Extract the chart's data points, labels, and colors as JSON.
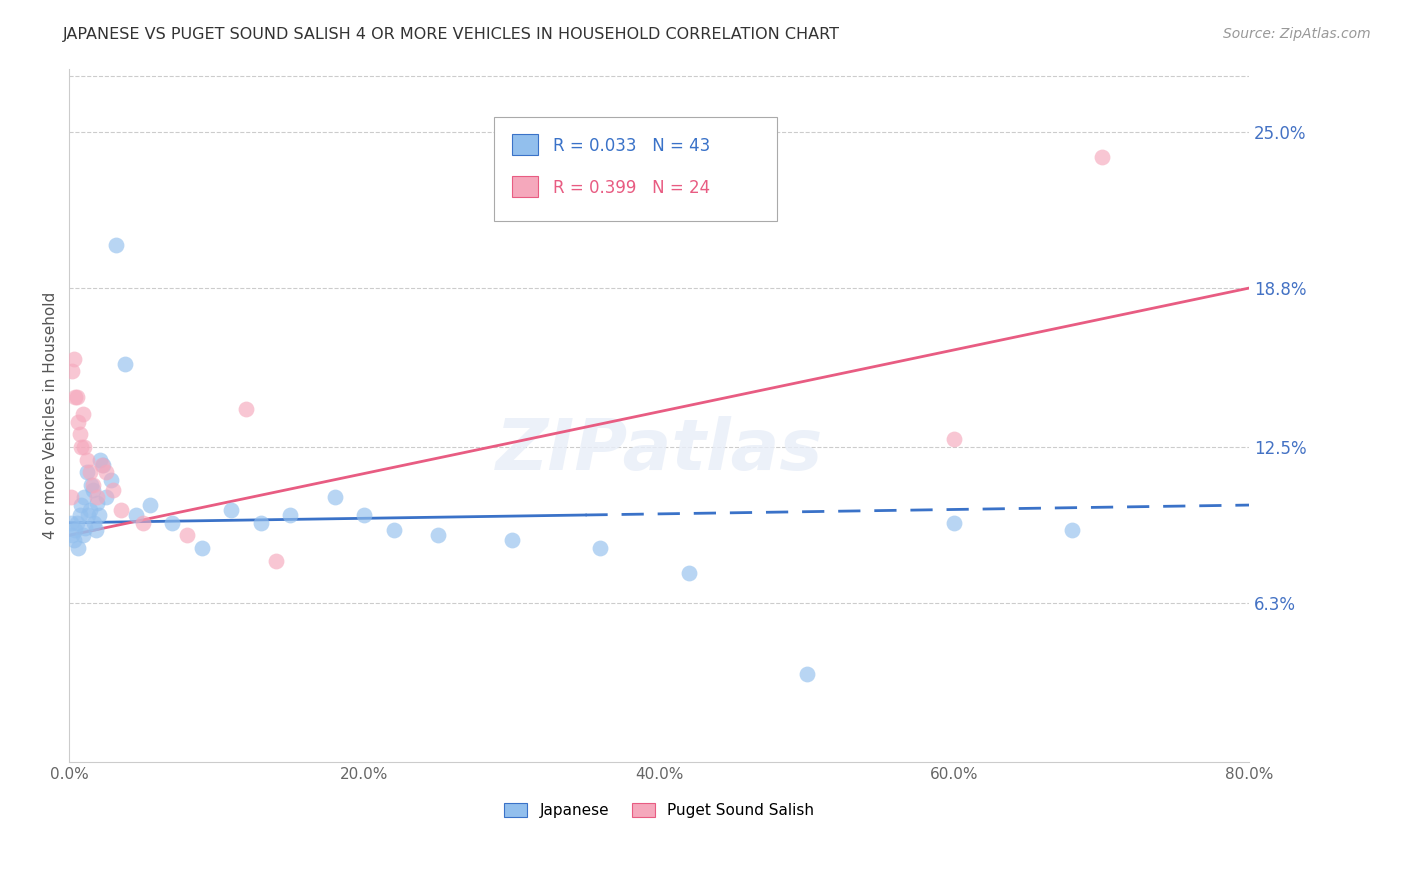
{
  "title": "JAPANESE VS PUGET SOUND SALISH 4 OR MORE VEHICLES IN HOUSEHOLD CORRELATION CHART",
  "source": "Source: ZipAtlas.com",
  "ylabel": "4 or more Vehicles in Household",
  "xlabel_vals": [
    0.0,
    20.0,
    40.0,
    60.0,
    80.0
  ],
  "ylabel_vals_right": [
    25.0,
    18.8,
    12.5,
    6.3
  ],
  "xlim": [
    0.0,
    80.0
  ],
  "ylim": [
    0.0,
    27.5
  ],
  "blue_color": "#92BFED",
  "pink_color": "#F5A8BC",
  "blue_line_color": "#3A72C8",
  "pink_line_color": "#E85C82",
  "legend_blue_r": "R = 0.033",
  "legend_blue_n": "N = 43",
  "legend_pink_r": "R = 0.399",
  "legend_pink_n": "N = 24",
  "japanese_x": [
    0.1,
    0.2,
    0.3,
    0.4,
    0.5,
    0.6,
    0.7,
    0.8,
    0.9,
    1.0,
    1.1,
    1.2,
    1.3,
    1.4,
    1.5,
    1.6,
    1.7,
    1.8,
    1.9,
    2.0,
    2.1,
    2.3,
    2.5,
    2.8,
    3.2,
    3.8,
    4.5,
    5.5,
    7.0,
    9.0,
    11.0,
    13.0,
    15.0,
    18.0,
    20.0,
    22.0,
    25.0,
    30.0,
    36.0,
    42.0,
    50.0,
    60.0,
    68.0
  ],
  "japanese_y": [
    9.5,
    9.0,
    8.8,
    9.2,
    9.5,
    8.5,
    9.8,
    10.2,
    9.0,
    10.5,
    9.3,
    11.5,
    9.8,
    10.0,
    11.0,
    10.8,
    9.5,
    9.2,
    10.3,
    9.8,
    12.0,
    11.8,
    10.5,
    11.2,
    20.5,
    15.8,
    9.8,
    10.2,
    9.5,
    8.5,
    10.0,
    9.5,
    9.8,
    10.5,
    9.8,
    9.2,
    9.0,
    8.8,
    8.5,
    7.5,
    3.5,
    9.5,
    9.2
  ],
  "puget_x": [
    0.1,
    0.2,
    0.3,
    0.4,
    0.5,
    0.6,
    0.7,
    0.8,
    0.9,
    1.0,
    1.2,
    1.4,
    1.6,
    1.9,
    2.2,
    2.5,
    3.0,
    3.5,
    5.0,
    8.0,
    12.0,
    14.0,
    60.0,
    70.0
  ],
  "puget_y": [
    10.5,
    15.5,
    16.0,
    14.5,
    14.5,
    13.5,
    13.0,
    12.5,
    13.8,
    12.5,
    12.0,
    11.5,
    11.0,
    10.5,
    11.8,
    11.5,
    10.8,
    10.0,
    9.5,
    9.0,
    14.0,
    8.0,
    12.8,
    24.0
  ],
  "blue_line_start_x": 0.0,
  "blue_line_end_solid_x": 35.0,
  "blue_line_end_x": 80.0,
  "blue_line_start_y": 9.5,
  "blue_line_end_y": 10.2,
  "pink_line_start_x": 0.0,
  "pink_line_end_x": 80.0,
  "pink_line_start_y": 9.0,
  "pink_line_end_y": 18.8
}
